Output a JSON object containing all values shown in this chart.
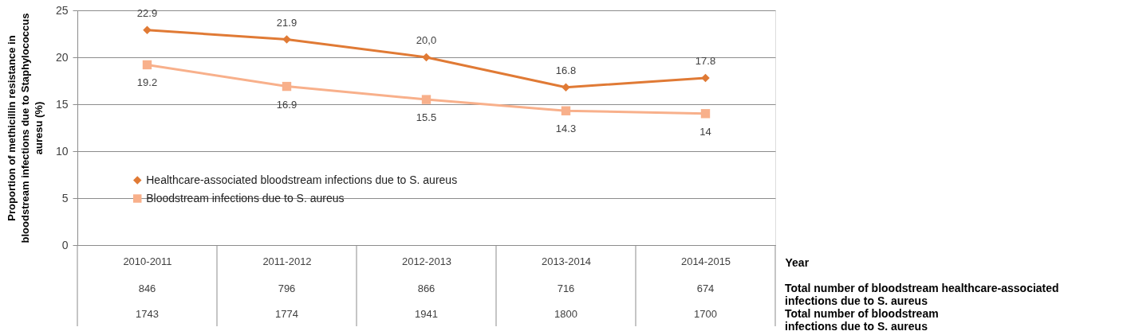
{
  "chart_data": {
    "type": "line",
    "ylabel": "Proportion of methicillin resistance in bloodstream infections due to Staphylococcus auresu (%)",
    "xlabel": "Year",
    "categories": [
      "2010-2011",
      "2011-2012",
      "2012-2013",
      "2013-2014",
      "2014-2015"
    ],
    "series": [
      {
        "name": "Healthcare-associated bloodstream infections due to S. aureus",
        "color": "#e07a35",
        "marker": "diamond",
        "values": [
          22.9,
          21.9,
          20.0,
          16.8,
          17.8
        ],
        "value_labels": [
          "22.9",
          "21.9",
          "20,0",
          "16.8",
          "17.8"
        ]
      },
      {
        "name": "Bloodstream infections due to S. aureus",
        "color": "#f8b08b",
        "marker": "square",
        "values": [
          19.2,
          16.9,
          15.5,
          14.3,
          14
        ],
        "value_labels": [
          "19.2",
          "16.9",
          "15.5",
          "14.3",
          "14"
        ]
      }
    ],
    "ylim": [
      0,
      25
    ],
    "yticks": [
      0,
      5,
      10,
      15,
      20,
      25
    ],
    "grid": "y",
    "legend": "bottom left",
    "line_style": "solid",
    "annotations": [
      "Total number of bloodstream healthcare-associated infections due to S. aureus",
      "846",
      "796",
      "866",
      "716",
      "674",
      "Total number of bloodstream infections due to S. aureus",
      "1743",
      "1774",
      "1941",
      "1800",
      "1700"
    ]
  }
}
